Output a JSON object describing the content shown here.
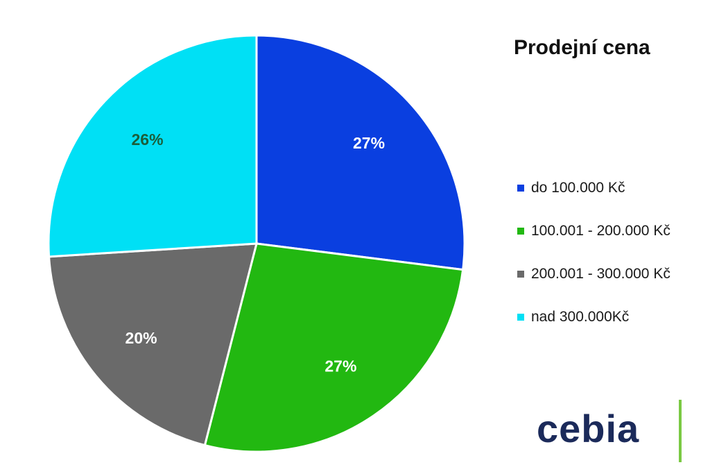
{
  "chart_data": {
    "type": "pie",
    "title": "Prodejní cena",
    "categories": [
      "do 100.000 Kč",
      "100.001 - 200.000 Kč",
      "200.001 - 300.000 Kč",
      "nad 300.000Kč"
    ],
    "values": [
      27,
      27,
      20,
      26
    ],
    "labels": [
      "27%",
      "27%",
      "20%",
      "26%"
    ],
    "colors": [
      "#0a3fe0",
      "#22b811",
      "#6a6a6a",
      "#00e0f5"
    ],
    "label_colors": [
      "#ffffff",
      "#ffffff",
      "#ffffff",
      "#1b5e3a"
    ],
    "legend_position": "right",
    "start": "top, clockwise"
  },
  "brand": {
    "name": "cebia",
    "accent_color": "#7ac943"
  }
}
